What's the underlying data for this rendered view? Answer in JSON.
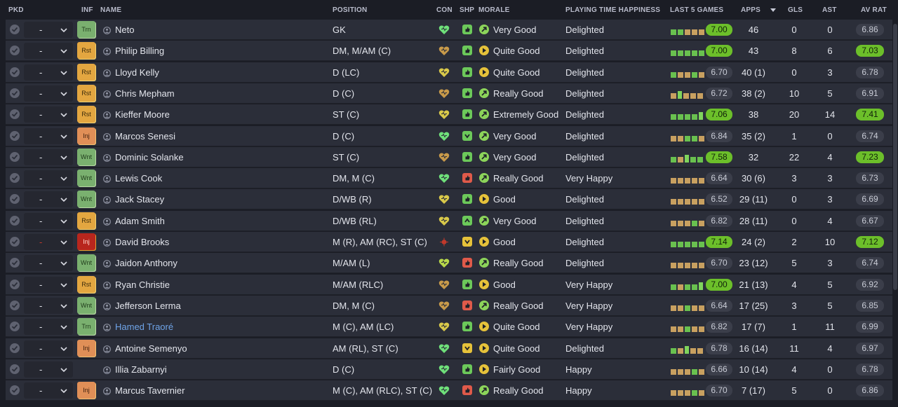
{
  "headers": {
    "pkd": "PKD",
    "inf": "INF",
    "name": "NAME",
    "position": "POSITION",
    "con": "CON",
    "shp": "SHP",
    "morale": "MORALE",
    "pth": "PLAYING TIME HAPPINESS",
    "last5": "LAST 5 GAMES",
    "apps": "APPS",
    "gls": "GLS",
    "ast": "AST",
    "avrat": "AV RAT"
  },
  "sort": {
    "column": "apps",
    "direction": "descending"
  },
  "icons": {
    "check": "check-circle-icon",
    "chevron": "chevron-down-icon",
    "person": "person-icon",
    "condition": "heart-icon",
    "sharpness": "sharpness-icon",
    "morale": "morale-arrow-icon"
  },
  "colors": {
    "good": "#6cbf2a",
    "warning": "#e3a640",
    "bad": "#e05a4a",
    "link": "#6fa4e8",
    "row_bg": "#2b2e39"
  },
  "players": [
    {
      "pkd": "-",
      "inf": "Trn",
      "name": "Neto",
      "position": "GK",
      "con": "green",
      "shp": "green-up",
      "morale": "Very Good",
      "morale_color": "green",
      "pth": "Delighted",
      "form": [
        "g",
        "g",
        "b",
        "b",
        "b"
      ],
      "last5": "7.00",
      "last5_high": true,
      "apps": "46",
      "gls": "0",
      "ast": "0",
      "avrat": "6.86",
      "avrat_high": false
    },
    {
      "pkd": "-",
      "inf": "Rst",
      "name": "Philip Billing",
      "position": "DM, M/AM (C)",
      "con": "brown",
      "shp": "green-up",
      "morale": "Quite Good",
      "morale_color": "yellow",
      "pth": "Delighted",
      "form": [
        "g",
        "g",
        "g",
        "g",
        "g"
      ],
      "last5": "7.00",
      "last5_high": true,
      "apps": "43",
      "gls": "8",
      "ast": "6",
      "avrat": "7.03",
      "avrat_high": true
    },
    {
      "pkd": "-",
      "inf": "Rst",
      "name": "Lloyd Kelly",
      "position": "D (LC)",
      "con": "yellow",
      "shp": "green-up",
      "morale": "Quite Good",
      "morale_color": "yellow",
      "pth": "Delighted",
      "form": [
        "g",
        "b",
        "b",
        "g",
        "b"
      ],
      "last5": "6.70",
      "last5_high": false,
      "apps": "40 (1)",
      "gls": "0",
      "ast": "3",
      "avrat": "6.78",
      "avrat_high": false
    },
    {
      "pkd": "-",
      "inf": "Rst",
      "name": "Chris Mepham",
      "position": "D (C)",
      "con": "brown",
      "shp": "green-up",
      "morale": "Really Good",
      "morale_color": "green",
      "pth": "Delighted",
      "form": [
        "b",
        "t",
        "b",
        "b",
        "b"
      ],
      "last5": "6.72",
      "last5_high": false,
      "apps": "38 (2)",
      "gls": "10",
      "ast": "5",
      "avrat": "6.91",
      "avrat_high": false
    },
    {
      "pkd": "-",
      "inf": "Rst",
      "name": "Kieffer Moore",
      "position": "ST (C)",
      "con": "yellow",
      "shp": "green-up",
      "morale": "Extremely Good",
      "morale_color": "green",
      "pth": "Delighted",
      "form": [
        "g",
        "g",
        "g",
        "g",
        "t"
      ],
      "last5": "7.06",
      "last5_high": true,
      "apps": "38",
      "gls": "20",
      "ast": "14",
      "avrat": "7.41",
      "avrat_high": true
    },
    {
      "pkd": "-",
      "inf": "Inj",
      "name": "Marcos Senesi",
      "position": "D (C)",
      "con": "green",
      "shp": "green-down",
      "morale": "Very Good",
      "morale_color": "green",
      "pth": "Delighted",
      "form": [
        "b",
        "b",
        "g",
        "g",
        "b"
      ],
      "last5": "6.84",
      "last5_high": false,
      "apps": "35 (2)",
      "gls": "1",
      "ast": "0",
      "avrat": "6.74",
      "avrat_high": false
    },
    {
      "pkd": "-",
      "inf": "Wnt",
      "name": "Dominic Solanke",
      "position": "ST (C)",
      "con": "brown",
      "shp": "green-up",
      "morale": "Very Good",
      "morale_color": "green",
      "pth": "Delighted",
      "form": [
        "g",
        "b",
        "t",
        "g",
        "g"
      ],
      "last5": "7.58",
      "last5_high": true,
      "apps": "32",
      "gls": "22",
      "ast": "4",
      "avrat": "7.23",
      "avrat_high": true
    },
    {
      "pkd": "-",
      "inf": "Wnt",
      "name": "Lewis Cook",
      "position": "DM, M (C)",
      "con": "green",
      "shp": "red-up",
      "morale": "Really Good",
      "morale_color": "green",
      "pth": "Very Happy",
      "form": [
        "b",
        "b",
        "b",
        "b",
        "b"
      ],
      "last5": "6.64",
      "last5_high": false,
      "apps": "30 (6)",
      "gls": "3",
      "ast": "3",
      "avrat": "6.73",
      "avrat_high": false
    },
    {
      "pkd": "-",
      "inf": "Wnt",
      "name": "Jack Stacey",
      "position": "D/WB (R)",
      "con": "yellow",
      "shp": "green-up",
      "morale": "Good",
      "morale_color": "yellow",
      "pth": "Delighted",
      "form": [
        "b",
        "b",
        "b",
        "b",
        "b"
      ],
      "last5": "6.52",
      "last5_high": false,
      "apps": "29 (11)",
      "gls": "0",
      "ast": "3",
      "avrat": "6.69",
      "avrat_high": false
    },
    {
      "pkd": "-",
      "inf": "Rst",
      "name": "Adam Smith",
      "position": "D/WB (RL)",
      "con": "yellow",
      "shp": "green-chevron",
      "morale": "Very Good",
      "morale_color": "green",
      "pth": "Delighted",
      "form": [
        "b",
        "b",
        "b",
        "g",
        "b"
      ],
      "last5": "6.82",
      "last5_high": false,
      "apps": "28 (11)",
      "gls": "0",
      "ast": "4",
      "avrat": "6.67",
      "avrat_high": false
    },
    {
      "pkd": "-",
      "inf": "Inj",
      "name": "David Brooks",
      "position": "M (R), AM (RC), ST (C)",
      "con": "injury",
      "shp": "yellow-down",
      "morale": "Good",
      "morale_color": "yellow",
      "pth": "Delighted",
      "form": [
        "g",
        "g",
        "g",
        "g",
        "g"
      ],
      "last5": "7.14",
      "last5_high": true,
      "apps": "24 (2)",
      "gls": "2",
      "ast": "10",
      "avrat": "7.12",
      "avrat_high": true
    },
    {
      "pkd": "-",
      "inf": "Wnt",
      "name": "Jaidon Anthony",
      "position": "M/AM (L)",
      "con": "yellow-green",
      "shp": "red-up",
      "morale": "Really Good",
      "morale_color": "green",
      "pth": "Delighted",
      "form": [
        "b",
        "b",
        "b",
        "b",
        "b"
      ],
      "last5": "6.70",
      "last5_high": false,
      "apps": "23 (12)",
      "gls": "5",
      "ast": "3",
      "avrat": "6.74",
      "avrat_high": false
    },
    {
      "pkd": "-",
      "inf": "Rst",
      "name": "Ryan Christie",
      "position": "M/AM (RLC)",
      "con": "brown",
      "shp": "green-up",
      "morale": "Good",
      "morale_color": "yellow",
      "pth": "Very Happy",
      "form": [
        "g",
        "b",
        "g",
        "g",
        "t"
      ],
      "last5": "7.00",
      "last5_high": true,
      "apps": "21 (13)",
      "gls": "4",
      "ast": "5",
      "avrat": "6.92",
      "avrat_high": false
    },
    {
      "pkd": "-",
      "inf": "Wnt",
      "name": "Jefferson Lerma",
      "position": "DM, M (C)",
      "con": "brown",
      "shp": "red-up",
      "morale": "Really Good",
      "morale_color": "green",
      "pth": "Very Happy",
      "form": [
        "b",
        "b",
        "g",
        "b",
        "b"
      ],
      "last5": "6.64",
      "last5_high": false,
      "apps": "17 (25)",
      "gls": "3",
      "ast": "5",
      "avrat": "6.85",
      "avrat_high": false
    },
    {
      "pkd": "-",
      "inf": "Trn",
      "name": "Hamed Traoré",
      "name_link": true,
      "position": "M (C), AM (LC)",
      "con": "yellow",
      "shp": "green-up",
      "morale": "Quite Good",
      "morale_color": "yellow",
      "pth": "Very Happy",
      "form": [
        "b",
        "b",
        "g",
        "b",
        "b"
      ],
      "last5": "6.82",
      "last5_high": false,
      "apps": "17 (7)",
      "gls": "1",
      "ast": "11",
      "avrat": "6.99",
      "avrat_high": false
    },
    {
      "pkd": "-",
      "inf": "Inj",
      "name": "Antoine Semenyo",
      "position": "AM (RL), ST (C)",
      "con": "green",
      "shp": "yellow-down",
      "morale": "Quite Good",
      "morale_color": "yellow",
      "pth": "Delighted",
      "form": [
        "g",
        "b",
        "t",
        "b",
        "b"
      ],
      "last5": "6.78",
      "last5_high": false,
      "apps": "16 (14)",
      "gls": "11",
      "ast": "4",
      "avrat": "6.97",
      "avrat_high": false
    },
    {
      "pkd": "-",
      "inf": "",
      "name": "Illia Zabarnyi",
      "position": "D (C)",
      "con": "green",
      "shp": "green-up",
      "morale": "Fairly Good",
      "morale_color": "yellow",
      "pth": "Happy",
      "form": [
        "b",
        "b",
        "b",
        "g",
        "b"
      ],
      "last5": "6.66",
      "last5_high": false,
      "apps": "10 (14)",
      "gls": "4",
      "ast": "0",
      "avrat": "6.78",
      "avrat_high": false
    },
    {
      "pkd": "-",
      "inf": "Inj",
      "name": "Marcus Tavernier",
      "position": "M (C), AM (RLC), ST (C)",
      "con": "green",
      "shp": "red-up",
      "morale": "Really Good",
      "morale_color": "green",
      "pth": "Happy",
      "form": [
        "b",
        "b",
        "b",
        "g",
        "b"
      ],
      "last5": "6.70",
      "last5_high": false,
      "apps": "7 (17)",
      "gls": "5",
      "ast": "0",
      "avrat": "6.86",
      "avrat_high": false
    }
  ]
}
